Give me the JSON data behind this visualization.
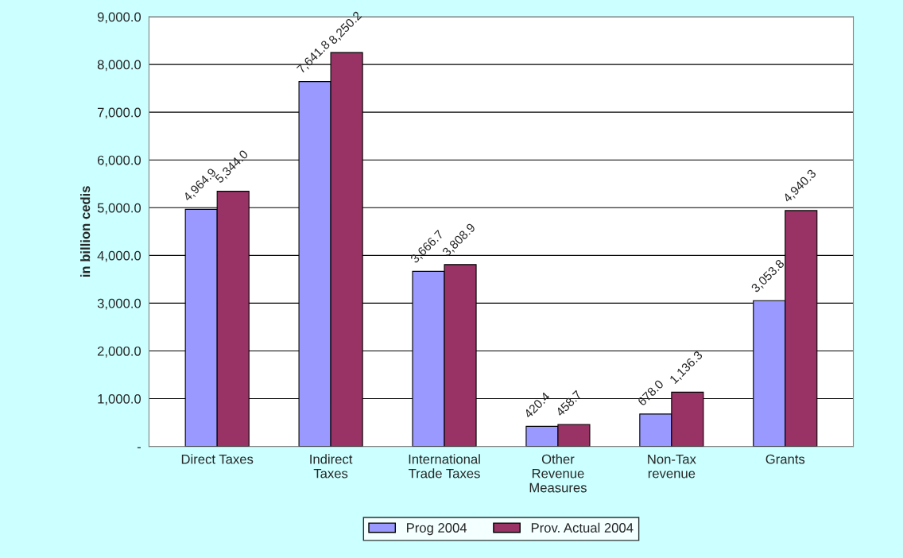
{
  "chart_data": {
    "type": "bar",
    "ylabel": "in billion cedis",
    "categories": [
      "Direct Taxes",
      "Indirect\nTaxes",
      "International\nTrade Taxes",
      "Other\nRevenue\nMeasures",
      "Non-Tax\nrevenue",
      "Grants"
    ],
    "series": [
      {
        "name": "Prog 2004",
        "color": "#9999ff",
        "values": [
          4964.9,
          7641.8,
          3666.7,
          420.4,
          678.0,
          3053.8
        ],
        "value_labels": [
          "4,964.9",
          "7,641.8",
          "3,666.7",
          "420.4",
          "678.0",
          "3,053.8"
        ]
      },
      {
        "name": "Prov. Actual 2004",
        "color": "#993366",
        "values": [
          5344.0,
          8250.2,
          3808.9,
          458.7,
          1136.3,
          4940.3
        ],
        "value_labels": [
          "5,344.0",
          "8,250.2",
          "3,808.9",
          "458.7",
          "1,136.3",
          "4,940.3"
        ]
      }
    ],
    "ylim": [
      0,
      9000
    ],
    "yticks": [
      {
        "value": 0,
        "label": "-"
      },
      {
        "value": 1000,
        "label": "1,000.0"
      },
      {
        "value": 2000,
        "label": "2,000.0"
      },
      {
        "value": 3000,
        "label": "3,000.0"
      },
      {
        "value": 4000,
        "label": "4,000.0"
      },
      {
        "value": 5000,
        "label": "5,000.0"
      },
      {
        "value": 6000,
        "label": "6,000.0"
      },
      {
        "value": 7000,
        "label": "7,000.0"
      },
      {
        "value": 8000,
        "label": "8,000.0"
      },
      {
        "value": 9000,
        "label": "9,000.0"
      }
    ],
    "grid": "y",
    "legend": "bottom"
  }
}
